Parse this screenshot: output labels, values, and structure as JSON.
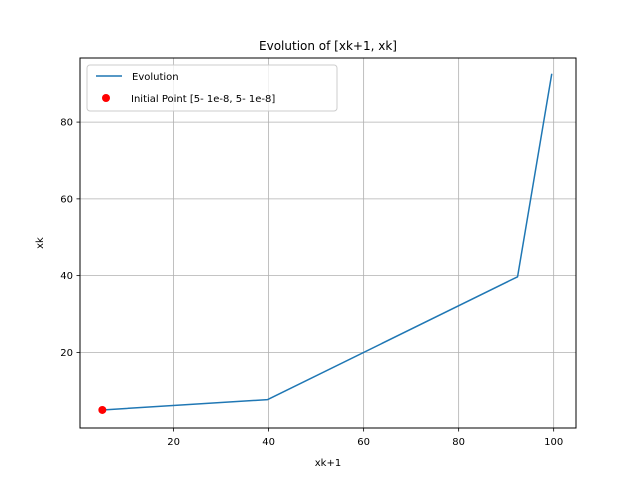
{
  "chart_data": {
    "type": "line",
    "title": "Evolution of [xk+1, xk]",
    "xlabel": "xk+1",
    "ylabel": "xk",
    "xlim": [
      0.3,
      104.7
    ],
    "ylim": [
      0.3,
      96.7
    ],
    "xticks": [
      20,
      40,
      60,
      80,
      100
    ],
    "yticks": [
      20,
      40,
      60,
      80
    ],
    "grid": true,
    "legend_position": "upper-left",
    "series": [
      {
        "name": "Evolution",
        "type": "line",
        "color": "#1f77b4",
        "x": [
          5.0,
          39.8,
          92.4,
          99.6
        ],
        "y": [
          5.0,
          7.7,
          39.7,
          92.6
        ]
      },
      {
        "name": "Initial Point [5- 1e-8, 5- 1e-8]",
        "type": "scatter",
        "color": "#ff0000",
        "x": [
          5.0
        ],
        "y": [
          5.0
        ]
      }
    ]
  }
}
